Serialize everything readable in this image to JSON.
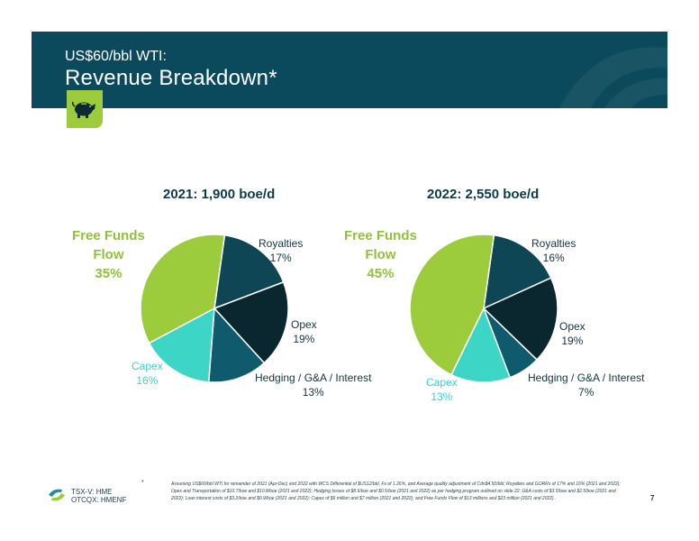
{
  "header": {
    "subtitle": "US$60/bbl WTI:",
    "title": "Revenue Breakdown*"
  },
  "icons": {
    "badge": "piggy-bank-icon",
    "logo": "company-logo-icon"
  },
  "colors": {
    "banner": "#0b4a5c",
    "royalties": "#0f4656",
    "opex": "#0a2730",
    "hedging": "#0f5a6c",
    "capex": "#3dd6c6",
    "free_funds_flow": "#9ccc3b"
  },
  "chart_data": [
    {
      "type": "pie",
      "title": "2021: 1,900 boe/d",
      "slices": [
        {
          "label": "Royalties",
          "value": 17,
          "value_label": "17%",
          "color": "#0f4656"
        },
        {
          "label": "Opex",
          "value": 19,
          "value_label": "19%",
          "color": "#0a2730"
        },
        {
          "label": "Hedging / G&A / Interest",
          "value": 13,
          "value_label": "13%",
          "color": "#0f5a6c"
        },
        {
          "label": "Capex",
          "value": 16,
          "value_label": "16%",
          "color": "#3dd6c6"
        },
        {
          "label": "Free Funds Flow",
          "value": 35,
          "value_label": "35%",
          "color": "#9ccc3b"
        }
      ]
    },
    {
      "type": "pie",
      "title": "2022: 2,550 boe/d",
      "slices": [
        {
          "label": "Royalties",
          "value": 16,
          "value_label": "16%",
          "color": "#0f4656"
        },
        {
          "label": "Opex",
          "value": 19,
          "value_label": "19%",
          "color": "#0a2730"
        },
        {
          "label": "Hedging / G&A / Interest",
          "value": 7,
          "value_label": "7%",
          "color": "#0f5a6c"
        },
        {
          "label": "Capex",
          "value": 13,
          "value_label": "13%",
          "color": "#3dd6c6"
        },
        {
          "label": "Free Funds Flow",
          "value": 45,
          "value_label": "45%",
          "color": "#9ccc3b"
        }
      ]
    }
  ],
  "labels": {
    "free_funds_line1": "Free Funds",
    "free_funds_line2": "Flow"
  },
  "footer": {
    "ticker_tsxv": "TSX-V: HME",
    "ticker_otcqx": "OTCQX: HMENF",
    "footnote_marker": "*",
    "footnote": "Assuming US$60/bbl WTI for remainder of 2021 (Apr-Dec) and 2022 with WCS Differential of $US12/bbl, Fx of 1.26%, and Average quality adjustment of Cdn$4.50/bbl; Royalties and GORRs of 17% and 16% (2021 and 2022); Opex and Transportation of $10.7/boe and $10.8/boe (2021 and 2022); Hedging losses of $8.6/boe and $0.5/boe (2021 and 2022) as per hedging program outlined on slide 22; G&A costs of $3.5/boe and $2.5/boe (2021 and 2022); Loan interest costs of $3.2/boe and $0.9/boe (2021 and 2022); Capex of $6 million and $7 million (2021 and 2022); and Free Funds Flow of $13 millions and $23 million (2021 and 2022) .",
    "page_number": "7"
  }
}
